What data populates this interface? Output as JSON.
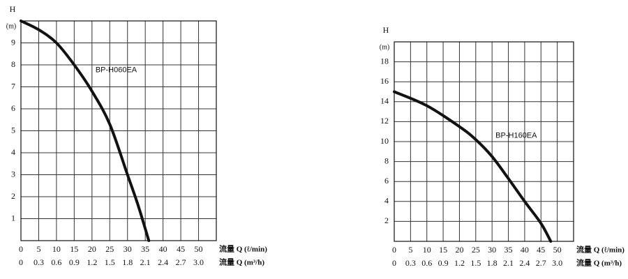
{
  "chart_data": [
    {
      "type": "line",
      "ylabel": "H",
      "yunit": "(m)",
      "xlabel": "流量 Q (ℓ/min)",
      "x2label": "流量 Q (m³/h)",
      "xlim": [
        0,
        55
      ],
      "ylim": [
        0,
        10
      ],
      "x2lim": [
        0,
        3.3
      ],
      "xticks": [
        0,
        5,
        10,
        15,
        20,
        25,
        30,
        35,
        40,
        45,
        50
      ],
      "x2ticks": [
        0,
        0.3,
        0.6,
        0.9,
        1.2,
        1.5,
        1.8,
        2.1,
        2.4,
        2.7,
        {
          "value": 3,
          "label": "3.0"
        }
      ],
      "yticks": [
        1,
        2,
        3,
        4,
        5,
        6,
        7,
        8,
        9
      ],
      "grid": true,
      "series": [
        {
          "name": "BP-H060EA",
          "color": "#111111",
          "x": [
            0,
            5,
            10,
            15,
            20,
            25,
            30,
            33,
            36
          ],
          "values": [
            10,
            9.6,
            9.0,
            8.0,
            6.8,
            5.3,
            3.0,
            1.6,
            0
          ]
        }
      ]
    },
    {
      "type": "line",
      "ylabel": "H",
      "yunit": "(m)",
      "xlabel": "流量 Q (ℓ/min)",
      "x2label": "流量 Q (m³/h)",
      "xlim": [
        0,
        55
      ],
      "ylim": [
        0,
        20
      ],
      "x2lim": [
        0,
        3.3
      ],
      "xticks": [
        0,
        5,
        10,
        15,
        20,
        25,
        30,
        35,
        40,
        45,
        50
      ],
      "x2ticks": [
        0,
        0.3,
        0.6,
        0.9,
        1.2,
        1.5,
        1.8,
        2.1,
        2.4,
        2.7,
        {
          "value": 3,
          "label": "3.0"
        }
      ],
      "yticks": [
        2,
        4,
        6,
        8,
        10,
        12,
        14,
        16,
        18
      ],
      "grid": true,
      "series": [
        {
          "name": "BP-H160EA",
          "color": "#111111",
          "x": [
            0,
            10,
            20,
            25,
            30,
            35,
            40,
            45,
            48
          ],
          "values": [
            15,
            13.6,
            11.5,
            10.2,
            8.5,
            6.3,
            4.0,
            1.8,
            0
          ]
        }
      ]
    }
  ]
}
